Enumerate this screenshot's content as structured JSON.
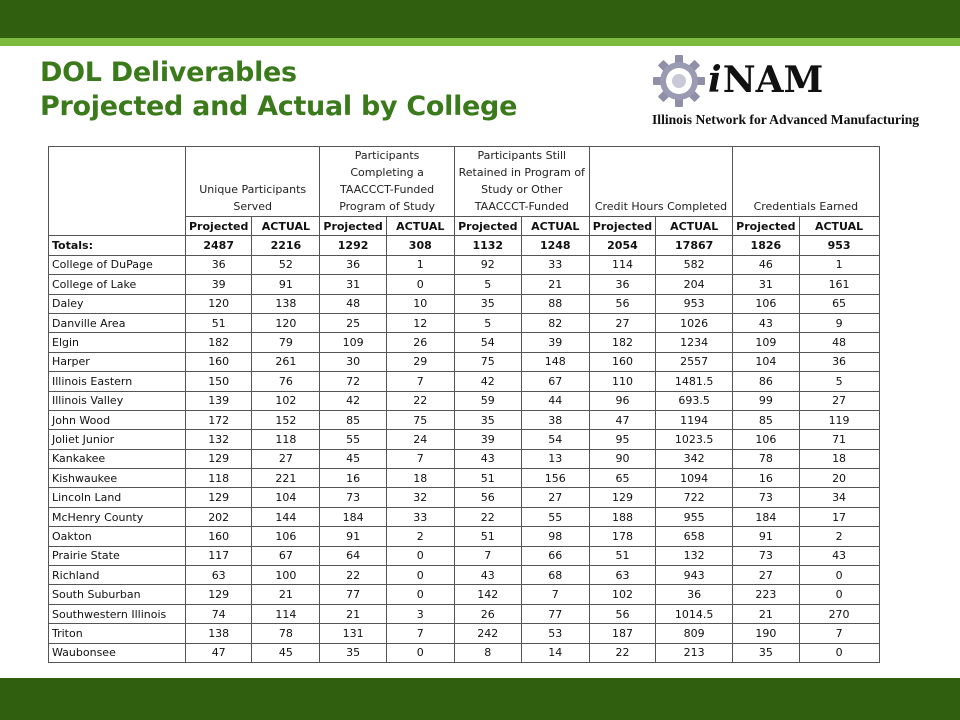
{
  "title": {
    "line1": "DOL Deliverables",
    "line2": "Projected and Actual by College"
  },
  "logo": {
    "icon": "gear-icon",
    "brand_i": "i",
    "brand_rest": "NAM",
    "tagline": "Illinois Network for Advanced Manufacturing"
  },
  "colors": {
    "dark_green": "#2f5f0f",
    "light_green": "#7dbb3e",
    "title_green": "#3a7a1a"
  },
  "table": {
    "groups": [
      "Unique Participants Served",
      "Participants Completing a TAACCCT-Funded Program of Study",
      "Participants Still Retained in Program of Study or Other TAACCCT-Funded",
      "Credit Hours Completed",
      "Credentials Earned"
    ],
    "subheaders": [
      "Projected",
      "ACTUAL",
      "Projected",
      "ACTUAL",
      "Projected",
      "ACTUAL",
      "Projected",
      "ACTUAL",
      "Projected",
      "ACTUAL"
    ],
    "totals": {
      "label": "Totals:",
      "values": [
        "2487",
        "2216",
        "1292",
        "308",
        "1132",
        "1248",
        "2054",
        "17867",
        "1826",
        "953"
      ]
    },
    "rows": [
      {
        "name": "College of DuPage",
        "values": [
          "36",
          "52",
          "36",
          "1",
          "92",
          "33",
          "114",
          "582",
          "46",
          "1"
        ]
      },
      {
        "name": "College of Lake",
        "values": [
          "39",
          "91",
          "31",
          "0",
          "5",
          "21",
          "36",
          "204",
          "31",
          "161"
        ]
      },
      {
        "name": "Daley",
        "values": [
          "120",
          "138",
          "48",
          "10",
          "35",
          "88",
          "56",
          "953",
          "106",
          "65"
        ]
      },
      {
        "name": "Danville Area",
        "values": [
          "51",
          "120",
          "25",
          "12",
          "5",
          "82",
          "27",
          "1026",
          "43",
          "9"
        ]
      },
      {
        "name": "Elgin",
        "values": [
          "182",
          "79",
          "109",
          "26",
          "54",
          "39",
          "182",
          "1234",
          "109",
          "48"
        ]
      },
      {
        "name": "Harper",
        "values": [
          "160",
          "261",
          "30",
          "29",
          "75",
          "148",
          "160",
          "2557",
          "104",
          "36"
        ]
      },
      {
        "name": "Illinois Eastern",
        "values": [
          "150",
          "76",
          "72",
          "7",
          "42",
          "67",
          "110",
          "1481.5",
          "86",
          "5"
        ]
      },
      {
        "name": "Illinois Valley",
        "values": [
          "139",
          "102",
          "42",
          "22",
          "59",
          "44",
          "96",
          "693.5",
          "99",
          "27"
        ]
      },
      {
        "name": "John Wood",
        "values": [
          "172",
          "152",
          "85",
          "75",
          "35",
          "38",
          "47",
          "1194",
          "85",
          "119"
        ]
      },
      {
        "name": "Joliet Junior",
        "values": [
          "132",
          "118",
          "55",
          "24",
          "39",
          "54",
          "95",
          "1023.5",
          "106",
          "71"
        ]
      },
      {
        "name": "Kankakee",
        "values": [
          "129",
          "27",
          "45",
          "7",
          "43",
          "13",
          "90",
          "342",
          "78",
          "18"
        ]
      },
      {
        "name": "Kishwaukee",
        "values": [
          "118",
          "221",
          "16",
          "18",
          "51",
          "156",
          "65",
          "1094",
          "16",
          "20"
        ]
      },
      {
        "name": "Lincoln Land",
        "values": [
          "129",
          "104",
          "73",
          "32",
          "56",
          "27",
          "129",
          "722",
          "73",
          "34"
        ]
      },
      {
        "name": "McHenry County",
        "values": [
          "202",
          "144",
          "184",
          "33",
          "22",
          "55",
          "188",
          "955",
          "184",
          "17"
        ]
      },
      {
        "name": "Oakton",
        "values": [
          "160",
          "106",
          "91",
          "2",
          "51",
          "98",
          "178",
          "658",
          "91",
          "2"
        ]
      },
      {
        "name": "Prairie State",
        "values": [
          "117",
          "67",
          "64",
          "0",
          "7",
          "66",
          "51",
          "132",
          "73",
          "43"
        ]
      },
      {
        "name": "Richland",
        "values": [
          "63",
          "100",
          "22",
          "0",
          "43",
          "68",
          "63",
          "943",
          "27",
          "0"
        ]
      },
      {
        "name": "South Suburban",
        "values": [
          "129",
          "21",
          "77",
          "0",
          "142",
          "7",
          "102",
          "36",
          "223",
          "0"
        ]
      },
      {
        "name": "Southwestern Illinois",
        "values": [
          "74",
          "114",
          "21",
          "3",
          "26",
          "77",
          "56",
          "1014.5",
          "21",
          "270"
        ]
      },
      {
        "name": "Triton",
        "values": [
          "138",
          "78",
          "131",
          "7",
          "242",
          "53",
          "187",
          "809",
          "190",
          "7"
        ]
      },
      {
        "name": "Waubonsee",
        "values": [
          "47",
          "45",
          "35",
          "0",
          "8",
          "14",
          "22",
          "213",
          "35",
          "0"
        ]
      }
    ]
  }
}
